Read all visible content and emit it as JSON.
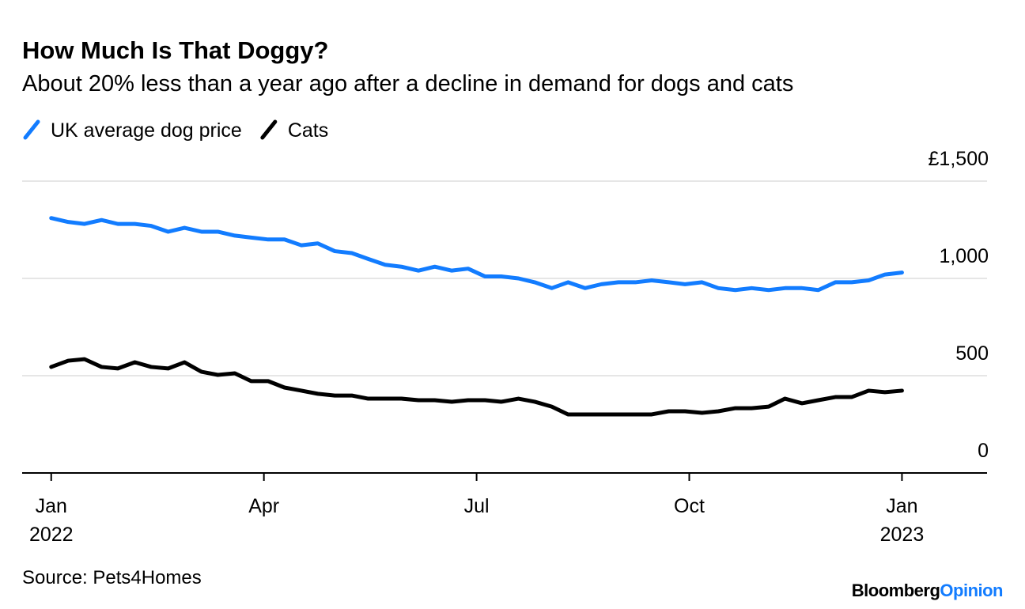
{
  "chart_data": {
    "type": "line",
    "title": "How Much Is That Doggy?",
    "subtitle": "About 20% less than a year ago after a decline in demand for dogs and cats",
    "source": "Source: Pets4Homes",
    "brand": [
      "Bloomberg",
      "Opinion"
    ],
    "x": [
      0,
      0.24,
      0.47,
      0.71,
      0.94,
      1.18,
      1.41,
      1.65,
      1.88,
      2.12,
      2.35,
      2.59,
      2.82,
      3.06,
      3.29,
      3.53,
      3.76,
      4,
      4.24,
      4.47,
      4.71,
      4.94,
      5.18,
      5.41,
      5.65,
      5.88,
      6.12,
      6.35,
      6.59,
      6.82,
      7.06,
      7.29,
      7.53,
      7.76,
      8,
      8.24,
      8.47,
      8.71,
      8.94,
      9.18,
      9.41,
      9.65,
      9.88,
      10.12,
      10.35,
      10.59,
      10.82,
      11.06,
      11.29,
      11.53,
      11.76,
      12
    ],
    "series": [
      {
        "name": "UK average dog price",
        "color": "#127cff",
        "values": [
          1310,
          1290,
          1280,
          1300,
          1280,
          1280,
          1270,
          1240,
          1260,
          1240,
          1240,
          1220,
          1210,
          1200,
          1200,
          1170,
          1180,
          1140,
          1130,
          1100,
          1070,
          1060,
          1040,
          1060,
          1040,
          1050,
          1010,
          1010,
          1000,
          980,
          950,
          980,
          950,
          970,
          980,
          980,
          990,
          980,
          970,
          980,
          950,
          940,
          950,
          940,
          950,
          950,
          940,
          980,
          980,
          990,
          1020,
          1030
        ]
      },
      {
        "name": "Cats",
        "color": "#000000",
        "values": [
          545,
          577,
          585,
          545,
          537,
          569,
          545,
          537,
          569,
          520,
          504,
          512,
          472,
          472,
          439,
          423,
          407,
          398,
          398,
          382,
          382,
          382,
          374,
          374,
          366,
          374,
          374,
          366,
          382,
          366,
          341,
          301,
          301,
          301,
          301,
          301,
          301,
          317,
          317,
          309,
          317,
          333,
          333,
          341,
          382,
          358,
          374,
          390,
          390,
          423,
          415,
          423
        ]
      }
    ],
    "xlim": [
      -0.41,
      13.2
    ],
    "xticks": [
      {
        "value": 0,
        "label": "Jan",
        "year": "2022"
      },
      {
        "value": 3,
        "label": "Apr"
      },
      {
        "value": 6,
        "label": "Jul"
      },
      {
        "value": 9,
        "label": "Oct"
      },
      {
        "value": 12,
        "label": "Jan",
        "year": "2023"
      }
    ],
    "ylim": [
      0,
      1500
    ],
    "yticks": [
      0,
      500,
      {
        "value": 1000,
        "label": "1,000"
      },
      {
        "value": 1500,
        "label": "£1,500"
      }
    ],
    "grid": true
  }
}
